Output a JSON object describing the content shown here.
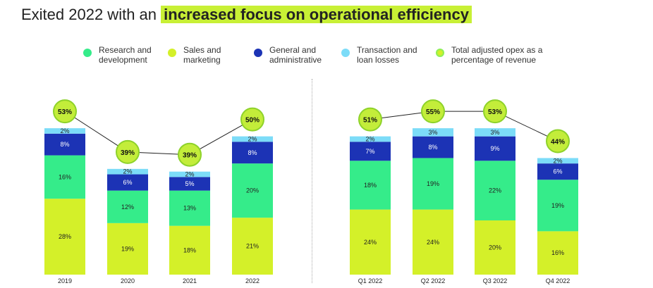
{
  "title": {
    "prefix": "Exited 2022 with an",
    "highlight": "increased focus on operational efficiency"
  },
  "colors": {
    "sales": "#d4f029",
    "rnd": "#35ec8a",
    "ga": "#1c33b5",
    "tx": "#7cdcf8",
    "bubble": "#c3ed3a",
    "bubble_ring": "#8ed22a"
  },
  "legend": [
    {
      "key": "rnd",
      "label": "Research and development",
      "icon": "green-dot"
    },
    {
      "key": "sales",
      "label": "Sales and marketing",
      "icon": "lime-dot"
    },
    {
      "key": "ga",
      "label": "General and administrative",
      "icon": "navy-dot"
    },
    {
      "key": "tx",
      "label": "Transaction and loan losses",
      "icon": "light-blue-dot"
    },
    {
      "key": "total",
      "label": "Total adjusted opex as a percentage of revenue",
      "icon": "gradient-dot"
    }
  ],
  "chart_data": [
    {
      "type": "bar",
      "stacked": true,
      "categories": [
        "2019",
        "2020",
        "2021",
        "2022"
      ],
      "series": [
        {
          "name": "Sales and marketing",
          "key": "sales",
          "values": [
            28,
            19,
            18,
            21
          ]
        },
        {
          "name": "Research and development",
          "key": "rnd",
          "values": [
            16,
            12,
            13,
            20
          ]
        },
        {
          "name": "General and administrative",
          "key": "ga",
          "values": [
            8,
            6,
            5,
            8
          ]
        },
        {
          "name": "Transaction and loan losses",
          "key": "tx",
          "values": [
            2,
            2,
            2,
            2
          ]
        }
      ],
      "totals": {
        "name": "Total adjusted opex as a percentage of revenue",
        "values": [
          53,
          39,
          39,
          50
        ]
      },
      "unit": "%"
    },
    {
      "type": "bar",
      "stacked": true,
      "categories": [
        "Q1 2022",
        "Q2 2022",
        "Q3 2022",
        "Q4 2022"
      ],
      "series": [
        {
          "name": "Sales and marketing",
          "key": "sales",
          "values": [
            24,
            24,
            20,
            16
          ]
        },
        {
          "name": "Research and development",
          "key": "rnd",
          "values": [
            18,
            19,
            22,
            19
          ]
        },
        {
          "name": "General and administrative",
          "key": "ga",
          "values": [
            7,
            8,
            9,
            6
          ]
        },
        {
          "name": "Transaction and loan losses",
          "key": "tx",
          "values": [
            2,
            3,
            3,
            2
          ]
        }
      ],
      "totals": {
        "name": "Total adjusted opex as a percentage of revenue",
        "values": [
          51,
          55,
          53,
          44
        ]
      },
      "unit": "%"
    }
  ]
}
